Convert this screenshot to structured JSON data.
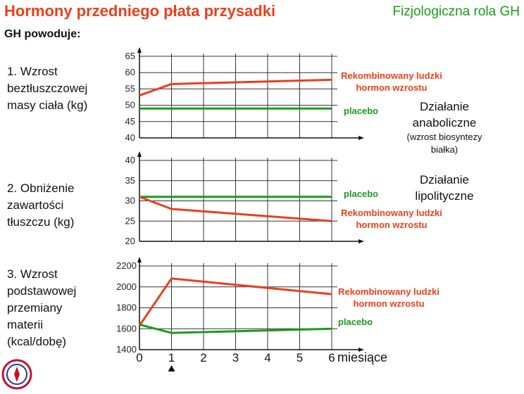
{
  "header": {
    "title": "Hormony przedniego płata przysadki",
    "right_title": "Fizjologiczna rola GH",
    "subtitle": "GH powoduje:"
  },
  "panels": {
    "p1": {
      "label": [
        "1. Wzrost",
        "beztłuszczowej",
        "masy ciała (kg)"
      ],
      "effect_main": [
        "Działanie",
        "anaboliczne"
      ],
      "effect_note": [
        "(wzrost biosyntezy",
        "białka)"
      ]
    },
    "p2": {
      "label": [
        "2. Obniżenie",
        "zawartości",
        "tłuszczu (kg)"
      ],
      "effect_main": [
        "Działanie",
        "lipolityczne"
      ]
    },
    "p3": {
      "label": [
        "3. Wzrost",
        "podstawowej",
        "przemiany",
        "materii",
        "(kcal/dobę)"
      ]
    }
  },
  "colors": {
    "title": "#e8401c",
    "right_title": "#1c9a1c",
    "gh_series": "#e8401c",
    "placebo_series": "#1c9a1c"
  },
  "icons": {
    "logo": "university-seal-icon",
    "marker": "triangle-up-icon"
  },
  "chart_data": [
    {
      "type": "line",
      "ylim": [
        40,
        65
      ],
      "yticks": [
        "40",
        "45",
        "50",
        "55",
        "60",
        "65"
      ],
      "x": [
        0,
        1,
        2,
        3,
        4,
        5,
        6
      ],
      "series": [
        {
          "name": [
            "Rekombinowany ludzki",
            "hormon wzrostu"
          ],
          "x": [
            0,
            1,
            6
          ],
          "values": [
            53,
            56.5,
            57.8
          ]
        },
        {
          "name": [
            "placebo"
          ],
          "x": [
            0,
            6
          ],
          "values": [
            49,
            49
          ]
        }
      ]
    },
    {
      "type": "line",
      "ylim": [
        20,
        40
      ],
      "yticks": [
        "20",
        "25",
        "30",
        "35",
        "40"
      ],
      "x": [
        0,
        1,
        2,
        3,
        4,
        5,
        6
      ],
      "series": [
        {
          "name": [
            "placebo"
          ],
          "x": [
            0,
            6
          ],
          "values": [
            31,
            31
          ]
        },
        {
          "name": [
            "Rekombinowany ludzki",
            "hormon wzrostu"
          ],
          "x": [
            0,
            1,
            6
          ],
          "values": [
            31,
            28,
            25
          ]
        }
      ]
    },
    {
      "type": "line",
      "ylim": [
        1400,
        2200
      ],
      "yticks": [
        "1400",
        "1600",
        "1800",
        "2000",
        "2200"
      ],
      "x": [
        0,
        1,
        2,
        3,
        4,
        5,
        6
      ],
      "xticks": [
        "0",
        "1",
        "2",
        "3",
        "4",
        "5",
        "6"
      ],
      "xlabel": "miesiące",
      "series": [
        {
          "name": [
            "Rekombinowany ludzki",
            "hormon wzrostu"
          ],
          "x": [
            0,
            1,
            6
          ],
          "values": [
            1630,
            2080,
            1930
          ]
        },
        {
          "name": [
            "placebo"
          ],
          "x": [
            0,
            1,
            6
          ],
          "values": [
            1640,
            1560,
            1600
          ]
        }
      ]
    }
  ]
}
